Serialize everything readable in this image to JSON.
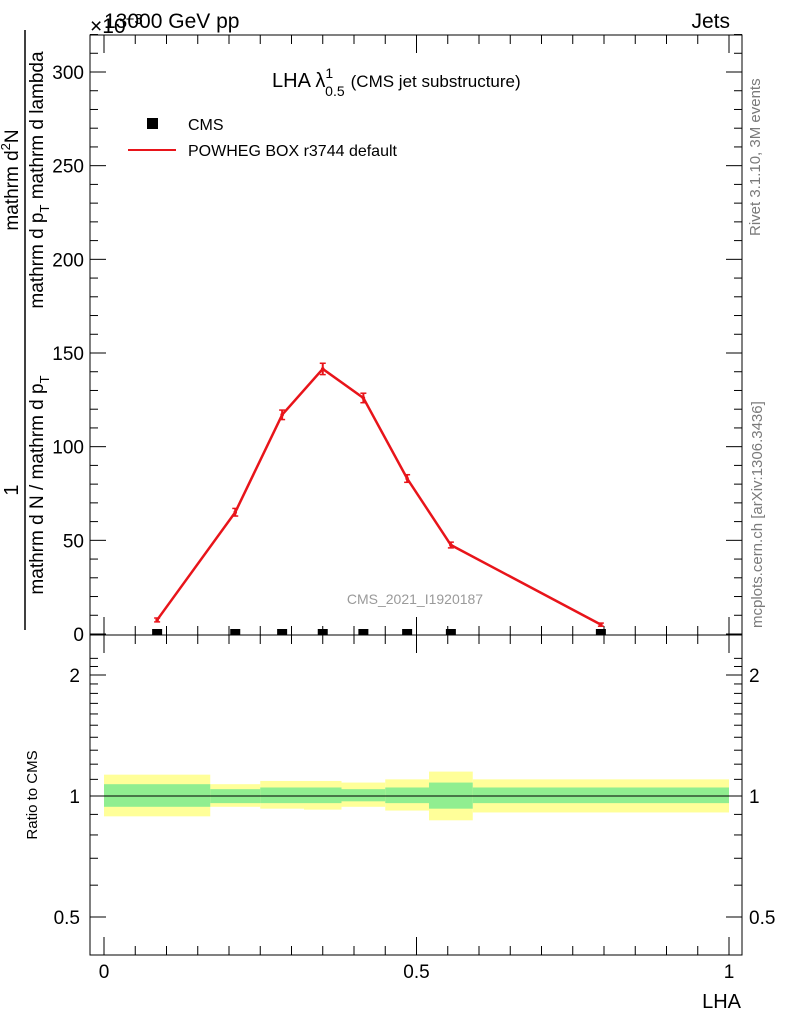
{
  "header": {
    "left": "13000 GeV pp",
    "right": "Jets",
    "scale_label": "×10",
    "scale_exponent": "−3"
  },
  "top_panel": {
    "title_main": "LHA λ",
    "title_sup": "1",
    "title_sub": "0.5",
    "title_suffix": "(CMS jet substructure)",
    "ylabel_numerator": "1",
    "ylabel_denominator": "mathrm d N / mathrm d p",
    "ylabel_denominator_sub": "T",
    "ylabel_numerator2": "mathrm d",
    "ylabel_numerator2_sup": "2",
    "ylabel_numerator2_end": "N",
    "ylabel_denominator2": "mathrm d p",
    "ylabel_denominator2_sub": "T",
    "ylabel_denominator2_end": " mathrm d lambda",
    "watermark": "CMS_2021_I1920187",
    "legend": [
      {
        "name": "CMS",
        "marker": "square",
        "color": "#000000"
      },
      {
        "name": "POWHEG BOX r3744 default",
        "marker": "line",
        "color": "#e8141a"
      }
    ],
    "side_text_1": "Rivet 3.1.10,  3M events",
    "side_text_2": "mcplots.cern.ch [arXiv:1306.3436]"
  },
  "bottom_panel": {
    "ylabel": "Ratio to CMS",
    "xlabel": "LHA"
  },
  "colors": {
    "mc_line": "#e8141a",
    "band_inner": "#90ee90",
    "band_outer": "#ffff99",
    "data": "#000000"
  },
  "chart_data": [
    {
      "type": "line",
      "panel": "main",
      "xlim": [
        0,
        1
      ],
      "ylim": [
        0,
        320
      ],
      "y_scale_factor": "1e-3",
      "yticks": [
        0,
        50,
        100,
        150,
        200,
        250,
        300
      ],
      "series": [
        {
          "name": "CMS",
          "type": "scatter",
          "x": [
            0.085,
            0.21,
            0.285,
            0.35,
            0.415,
            0.485,
            0.555,
            0.795
          ],
          "y": [
            0.5,
            0.5,
            0.5,
            0.5,
            0.5,
            0.5,
            0.5,
            0.5
          ]
        },
        {
          "name": "POWHEG BOX r3744 default",
          "type": "line",
          "x": [
            0.085,
            0.21,
            0.285,
            0.35,
            0.415,
            0.485,
            0.555,
            0.795
          ],
          "y": [
            7.5,
            65,
            117,
            141.5,
            126,
            83,
            47.5,
            5
          ],
          "yerr": [
            0.5,
            1.5,
            2,
            2.5,
            2,
            1.5,
            1,
            0.3
          ]
        }
      ]
    },
    {
      "type": "area",
      "panel": "ratio",
      "xlim": [
        0,
        1
      ],
      "ylim": [
        0.4,
        2.3
      ],
      "y_scale": "log",
      "yticks": [
        0.5,
        1,
        2
      ],
      "xticks": [
        0,
        0.5,
        1
      ],
      "bins": [
        {
          "x": [
            0,
            0.17
          ],
          "inner": [
            0.94,
            1.07
          ],
          "outer": [
            0.89,
            1.13
          ]
        },
        {
          "x": [
            0.17,
            0.25
          ],
          "inner": [
            0.96,
            1.04
          ],
          "outer": [
            0.94,
            1.07
          ]
        },
        {
          "x": [
            0.25,
            0.32
          ],
          "inner": [
            0.96,
            1.05
          ],
          "outer": [
            0.93,
            1.09
          ]
        },
        {
          "x": [
            0.32,
            0.38
          ],
          "inner": [
            0.96,
            1.05
          ],
          "outer": [
            0.925,
            1.09
          ]
        },
        {
          "x": [
            0.38,
            0.45
          ],
          "inner": [
            0.97,
            1.04
          ],
          "outer": [
            0.94,
            1.08
          ]
        },
        {
          "x": [
            0.45,
            0.52
          ],
          "inner": [
            0.96,
            1.05
          ],
          "outer": [
            0.92,
            1.1
          ]
        },
        {
          "x": [
            0.52,
            0.59
          ],
          "inner": [
            0.93,
            1.08
          ],
          "outer": [
            0.87,
            1.15
          ]
        },
        {
          "x": [
            0.59,
            1.0
          ],
          "inner": [
            0.96,
            1.05
          ],
          "outer": [
            0.91,
            1.1
          ]
        }
      ],
      "reference": 1
    }
  ]
}
